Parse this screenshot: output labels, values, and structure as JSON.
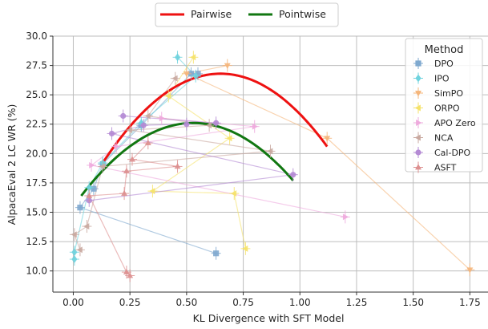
{
  "chart_data": {
    "type": "scatter",
    "xlabel": "KL Divergence with SFT Model",
    "ylabel": "AlpacaEval 2 LC WR (%)",
    "xlim": [
      -0.09,
      1.83
    ],
    "ylim": [
      8.2,
      30.0
    ],
    "xticks": [
      0.0,
      0.25,
      0.5,
      0.75,
      1.0,
      1.25,
      1.5,
      1.75
    ],
    "xtick_labels": [
      "0.00",
      "0.25",
      "0.50",
      "0.75",
      "1.00",
      "1.25",
      "1.50",
      "1.75"
    ],
    "yticks": [
      10.0,
      12.5,
      15.0,
      17.5,
      20.0,
      22.5,
      25.0,
      27.5,
      30.0
    ],
    "ytick_labels": [
      "10.0",
      "12.5",
      "15.0",
      "17.5",
      "20.0",
      "22.5",
      "25.0",
      "27.5",
      "30.0"
    ],
    "grid": true,
    "top_legend": {
      "placement": "top-center",
      "entries": [
        {
          "name": "Pairwise",
          "color": "#ee1111"
        },
        {
          "name": "Pointwise",
          "color": "#117711"
        }
      ]
    },
    "method_legend": {
      "title": "Method",
      "placement": "upper-right"
    },
    "trend_lines": [
      {
        "name": "Pairwise",
        "color": "#ee1111",
        "x_range": [
          0.13,
          1.12
        ],
        "vertex": [
          0.65,
          26.8
        ],
        "end_y": 20.6
      },
      {
        "name": "Pointwise",
        "color": "#117711",
        "x_range": [
          0.035,
          0.97
        ],
        "vertex": [
          0.53,
          22.6
        ],
        "end_y": 17.7
      }
    ],
    "series": [
      {
        "name": "DPO",
        "color": "#7fa9cf",
        "marker": "square",
        "points": [
          [
            0.03,
            15.4
          ],
          [
            0.09,
            17.0
          ],
          [
            0.13,
            19.1
          ],
          [
            0.3,
            22.4
          ],
          [
            0.52,
            26.8
          ],
          [
            0.55,
            26.8
          ],
          [
            0.63,
            11.5
          ]
        ]
      },
      {
        "name": "IPO",
        "color": "#6fd3de",
        "marker": "diamond",
        "points": [
          [
            0.005,
            11.0
          ],
          [
            0.005,
            11.6
          ],
          [
            0.07,
            17.1
          ],
          [
            0.13,
            19.2
          ],
          [
            0.3,
            22.6
          ],
          [
            0.46,
            28.2
          ],
          [
            0.54,
            26.6
          ]
        ]
      },
      {
        "name": "SimPO",
        "color": "#f5b57a",
        "marker": "triangle-down",
        "points": [
          [
            0.5,
            26.8
          ],
          [
            0.68,
            27.5
          ],
          [
            1.12,
            21.3
          ],
          [
            1.75,
            10.1
          ]
        ]
      },
      {
        "name": "ORPO",
        "color": "#f5e26a",
        "marker": "triangle-left",
        "points": [
          [
            0.35,
            16.8
          ],
          [
            0.42,
            24.9
          ],
          [
            0.53,
            28.2
          ],
          [
            0.69,
            21.3
          ],
          [
            0.71,
            16.6
          ],
          [
            0.76,
            11.9
          ]
        ]
      },
      {
        "name": "APO Zero",
        "color": "#eeaadd",
        "marker": "triangle-right",
        "points": [
          [
            0.08,
            19.0
          ],
          [
            0.19,
            20.6
          ],
          [
            0.39,
            23.0
          ],
          [
            0.8,
            22.3
          ],
          [
            1.2,
            14.6
          ]
        ]
      },
      {
        "name": "NCA",
        "color": "#c9a9a0",
        "marker": "triangle-left",
        "points": [
          [
            0.005,
            13.1
          ],
          [
            0.03,
            11.8
          ],
          [
            0.06,
            13.8
          ],
          [
            0.13,
            18.9
          ],
          [
            0.25,
            22.0
          ],
          [
            0.33,
            23.2
          ],
          [
            0.45,
            26.4
          ],
          [
            0.6,
            22.4
          ],
          [
            0.87,
            20.2
          ]
        ]
      },
      {
        "name": "Cal-DPO",
        "color": "#b48ad4",
        "marker": "circle",
        "points": [
          [
            0.07,
            16.0
          ],
          [
            0.17,
            21.7
          ],
          [
            0.22,
            23.2
          ],
          [
            0.31,
            22.4
          ],
          [
            0.5,
            22.5
          ],
          [
            0.63,
            22.6
          ],
          [
            0.97,
            18.2
          ]
        ]
      },
      {
        "name": "ASFT",
        "color": "#dd9090",
        "marker": "triangle-up",
        "points": [
          [
            0.07,
            16.4
          ],
          [
            0.225,
            16.6
          ],
          [
            0.235,
            18.5
          ],
          [
            0.26,
            19.5
          ],
          [
            0.33,
            20.9
          ],
          [
            0.46,
            18.9
          ],
          [
            0.235,
            9.9
          ],
          [
            0.25,
            9.6
          ]
        ]
      }
    ]
  }
}
